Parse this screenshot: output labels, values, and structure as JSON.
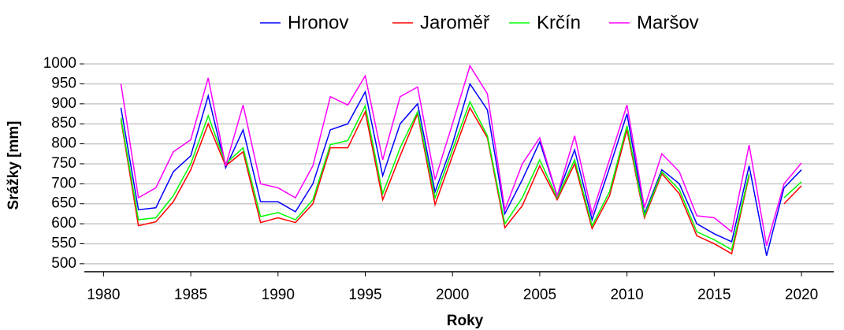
{
  "chart_data": {
    "type": "line",
    "x": [
      1981,
      1982,
      1983,
      1984,
      1985,
      1986,
      1987,
      1988,
      1989,
      1990,
      1991,
      1992,
      1993,
      1994,
      1995,
      1996,
      1997,
      1998,
      1999,
      2000,
      2001,
      2002,
      2003,
      2004,
      2005,
      2006,
      2007,
      2008,
      2009,
      2010,
      2011,
      2012,
      2013,
      2014,
      2015,
      2016,
      2017,
      2018,
      2019,
      2020
    ],
    "series": [
      {
        "name": "Hronov",
        "color": "#0000ff",
        "values": [
          890,
          635,
          640,
          730,
          770,
          920,
          740,
          835,
          655,
          655,
          630,
          700,
          835,
          850,
          930,
          720,
          850,
          900,
          680,
          800,
          950,
          885,
          625,
          710,
          805,
          670,
          785,
          610,
          740,
          875,
          625,
          735,
          700,
          600,
          575,
          555,
          745,
          520,
          690,
          735
        ]
      },
      {
        "name": "Jaroměř",
        "color": "#ff0000",
        "values": [
          860,
          595,
          605,
          655,
          735,
          850,
          745,
          780,
          603,
          615,
          603,
          650,
          790,
          790,
          880,
          660,
          770,
          875,
          648,
          770,
          890,
          815,
          590,
          645,
          745,
          660,
          750,
          588,
          670,
          835,
          615,
          725,
          675,
          570,
          550,
          525,
          720,
          null,
          650,
          695
        ]
      },
      {
        "name": "Krčín",
        "color": "#00ff00",
        "values": [
          865,
          610,
          615,
          670,
          750,
          870,
          750,
          790,
          618,
          628,
          610,
          660,
          798,
          808,
          895,
          675,
          790,
          880,
          665,
          785,
          905,
          820,
          600,
          665,
          760,
          665,
          760,
          595,
          680,
          845,
          620,
          730,
          685,
          580,
          560,
          535,
          725,
          null,
          665,
          705
        ]
      },
      {
        "name": "Maršov",
        "color": "#ff00ff",
        "values": [
          950,
          665,
          690,
          780,
          810,
          965,
          745,
          897,
          700,
          690,
          665,
          745,
          918,
          897,
          970,
          760,
          918,
          942,
          710,
          850,
          995,
          925,
          635,
          750,
          815,
          670,
          820,
          625,
          760,
          897,
          640,
          775,
          730,
          620,
          615,
          580,
          797,
          545,
          700,
          752
        ]
      }
    ],
    "xlabel": "Roky",
    "ylabel": "Srážky [mm]",
    "xlim": [
      1978.9,
      2021.85
    ],
    "xticks": [
      1980,
      1985,
      1990,
      1995,
      2000,
      2005,
      2010,
      2015,
      2020
    ],
    "ylim": [
      480,
      1010
    ],
    "yticks": [
      500,
      550,
      600,
      650,
      700,
      750,
      800,
      850,
      900,
      950,
      1000
    ],
    "grid": true,
    "legend": "top"
  }
}
